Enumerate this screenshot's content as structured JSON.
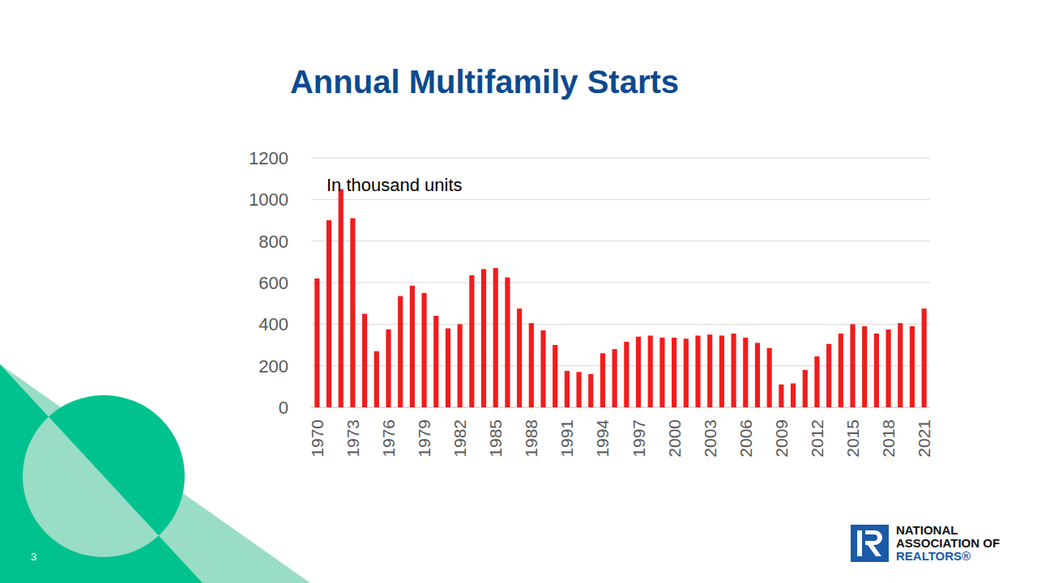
{
  "chart_data": {
    "type": "bar",
    "title": "Annual Multifamily Starts",
    "annotation": "In thousand units",
    "categories": [
      "1970",
      null,
      null,
      "1973",
      null,
      null,
      "1976",
      null,
      null,
      "1979",
      null,
      null,
      "1982",
      null,
      null,
      "1985",
      null,
      null,
      "1988",
      null,
      null,
      "1991",
      null,
      null,
      "1994",
      null,
      null,
      "1997",
      null,
      null,
      "2000",
      null,
      null,
      "2003",
      null,
      null,
      "2006",
      null,
      null,
      "2009",
      null,
      null,
      "2012",
      null,
      null,
      "2015",
      null,
      null,
      "2018",
      null,
      null,
      "2021"
    ],
    "values": [
      620,
      900,
      1050,
      910,
      450,
      270,
      375,
      535,
      585,
      550,
      440,
      380,
      400,
      635,
      665,
      670,
      625,
      475,
      405,
      370,
      300,
      175,
      170,
      160,
      260,
      280,
      315,
      340,
      345,
      335,
      335,
      330,
      345,
      350,
      345,
      355,
      335,
      310,
      285,
      110,
      115,
      180,
      245,
      305,
      355,
      400,
      390,
      355,
      375,
      405,
      390,
      475
    ],
    "color": "#f21c1c",
    "ylim": [
      0,
      1200
    ],
    "yticks": [
      0,
      200,
      400,
      600,
      800,
      1000,
      1200
    ],
    "grid": true,
    "page_number": "3",
    "logo_text": [
      "NATIONAL",
      "ASSOCIATION OF",
      "REALTORS®"
    ]
  }
}
